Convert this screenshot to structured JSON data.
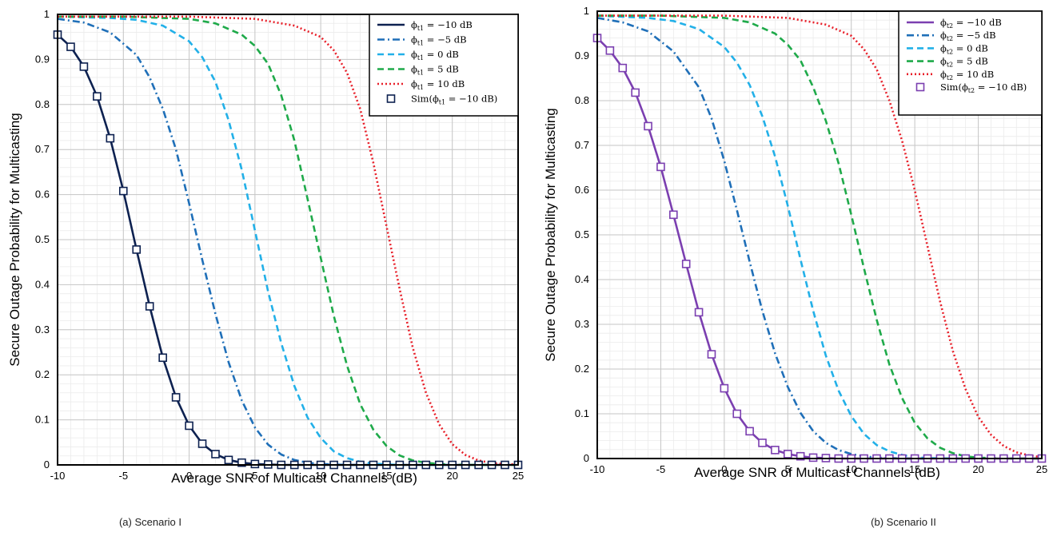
{
  "chart_data": [
    {
      "type": "line",
      "caption": "(a) Scenario I",
      "xlabel": "Average SNR of Multicast Channels (dB)",
      "ylabel": "Secure Outage Probability for Multicasting",
      "xlim": [
        -10,
        25
      ],
      "ylim": [
        0,
        1
      ],
      "x_ticks": [
        "-10",
        "-5",
        "0",
        "5",
        "10",
        "15",
        "20",
        "25"
      ],
      "y_ticks": [
        "0",
        "0.1",
        "0.2",
        "0.3",
        "0.4",
        "0.5",
        "0.6",
        "0.7",
        "0.8",
        "0.9",
        "1"
      ],
      "grid": true,
      "legend_position": "top-right",
      "series": [
        {
          "name": "ϕt1 = −10 dB",
          "sym": "ϕ",
          "sub": "t1",
          "rest": " = −10 dB",
          "color": "#0d2150",
          "style": "solid",
          "x": [
            -10,
            -9,
            -8,
            -7,
            -6,
            -5,
            -4,
            -3,
            -2,
            -1,
            0,
            1,
            2,
            3,
            4,
            5,
            6,
            7,
            8,
            9,
            10,
            12,
            14,
            16,
            18,
            20,
            22,
            24,
            25
          ],
          "y": [
            0.955,
            0.928,
            0.884,
            0.818,
            0.725,
            0.608,
            0.478,
            0.352,
            0.238,
            0.15,
            0.087,
            0.047,
            0.024,
            0.011,
            0.005,
            0.002,
            0.001,
            0,
            0,
            0,
            0,
            0,
            0,
            0,
            0,
            0,
            0,
            0,
            0
          ]
        },
        {
          "name": "ϕt1 = −5 dB",
          "sym": "ϕ",
          "sub": "t1",
          "rest": " = −5 dB",
          "color": "#1f6fb8",
          "style": "dashdot",
          "x": [
            -10,
            -8,
            -6,
            -4,
            -3,
            -2,
            -1,
            0,
            1,
            2,
            3,
            4,
            5,
            6,
            7,
            8,
            9,
            10,
            11,
            12,
            13,
            14,
            15
          ],
          "y": [
            0.99,
            0.982,
            0.96,
            0.91,
            0.86,
            0.79,
            0.7,
            0.58,
            0.455,
            0.335,
            0.228,
            0.143,
            0.083,
            0.045,
            0.023,
            0.011,
            0.005,
            0.002,
            0.001,
            0,
            0,
            0,
            0
          ]
        },
        {
          "name": "ϕt1 = 0 dB",
          "sym": "ϕ",
          "sub": "t1",
          "rest": " = 0 dB",
          "color": "#22b0e8",
          "style": "dash",
          "x": [
            -10,
            -6,
            -4,
            -2,
            0,
            1,
            2,
            3,
            4,
            5,
            6,
            7,
            8,
            9,
            10,
            11,
            12,
            13,
            14,
            15,
            16,
            18,
            20
          ],
          "y": [
            0.995,
            0.992,
            0.988,
            0.975,
            0.94,
            0.905,
            0.85,
            0.765,
            0.655,
            0.52,
            0.385,
            0.27,
            0.175,
            0.105,
            0.06,
            0.03,
            0.015,
            0.007,
            0.003,
            0.001,
            0,
            0,
            0
          ]
        },
        {
          "name": "ϕt1 = 5 dB",
          "sym": "ϕ",
          "sub": "t1",
          "rest": " = 5 dB",
          "color": "#1faa4a",
          "style": "dash",
          "x": [
            -10,
            -5,
            0,
            2,
            4,
            5,
            6,
            7,
            8,
            9,
            10,
            11,
            12,
            13,
            14,
            15,
            16,
            17,
            18,
            19,
            20,
            21,
            22,
            24,
            25
          ],
          "y": [
            0.995,
            0.995,
            0.99,
            0.98,
            0.955,
            0.93,
            0.89,
            0.82,
            0.72,
            0.59,
            0.46,
            0.33,
            0.22,
            0.135,
            0.078,
            0.042,
            0.021,
            0.01,
            0.005,
            0.002,
            0.001,
            0,
            0,
            0,
            0
          ]
        },
        {
          "name": "ϕt1 = 10 dB",
          "sym": "ϕ",
          "sub": "t1",
          "rest": " = 10 dB",
          "color": "#e8202a",
          "style": "dot",
          "x": [
            -10,
            -5,
            0,
            5,
            8,
            10,
            11,
            12,
            13,
            14,
            15,
            16,
            17,
            18,
            19,
            20,
            21,
            22,
            23,
            24,
            25
          ],
          "y": [
            0.995,
            0.995,
            0.995,
            0.99,
            0.975,
            0.95,
            0.92,
            0.87,
            0.79,
            0.67,
            0.53,
            0.39,
            0.26,
            0.16,
            0.09,
            0.046,
            0.022,
            0.01,
            0.004,
            0.002,
            0.001
          ]
        },
        {
          "name": "Sim(ϕt1 = −10 dB)",
          "sym": "Sim(ϕ",
          "sub": "t1",
          "rest": " = −10 dB)",
          "color": "#0d2150",
          "style": "markers",
          "x": [
            -10,
            -9,
            -8,
            -7,
            -6,
            -5,
            -4,
            -3,
            -2,
            -1,
            0,
            1,
            2,
            3,
            4,
            5,
            6,
            7,
            8,
            9,
            10,
            11,
            12,
            13,
            14,
            15,
            16,
            17,
            18,
            19,
            20,
            21,
            22,
            23,
            24,
            25
          ],
          "y": [
            0.955,
            0.928,
            0.884,
            0.818,
            0.725,
            0.608,
            0.478,
            0.352,
            0.238,
            0.15,
            0.087,
            0.047,
            0.024,
            0.011,
            0.005,
            0.002,
            0.001,
            0,
            0,
            0,
            0,
            0,
            0,
            0,
            0,
            0,
            0,
            0,
            0,
            0,
            0,
            0,
            0,
            0,
            0,
            0
          ]
        }
      ]
    },
    {
      "type": "line",
      "caption": "(b) Scenario II",
      "xlabel": "Average SNR of Multicast  Channels (dB)",
      "ylabel": "Secure Outage Probability  for Multicasting",
      "xlim": [
        -10,
        25
      ],
      "ylim": [
        0,
        1
      ],
      "x_ticks": [
        "-10",
        "-5",
        "0",
        "5",
        "10",
        "15",
        "20",
        "25"
      ],
      "y_ticks": [
        "0",
        "0.1",
        "0.2",
        "0.3",
        "0.4",
        "0.5",
        "0.6",
        "0.7",
        "0.8",
        "0.9",
        "1"
      ],
      "grid": true,
      "legend_position": "top-right",
      "series": [
        {
          "name": "ϕt2 = −10 dB",
          "sym": "ϕ",
          "sub": "t2",
          "rest": " = −10 dB",
          "color": "#7b3fb0",
          "style": "solid",
          "x": [
            -10,
            -9,
            -8,
            -7,
            -6,
            -5,
            -4,
            -3,
            -2,
            -1,
            0,
            1,
            2,
            3,
            4,
            5,
            6,
            7,
            8,
            9,
            10,
            12,
            14,
            16,
            18,
            20,
            22,
            24,
            25
          ],
          "y": [
            0.94,
            0.912,
            0.873,
            0.818,
            0.743,
            0.652,
            0.545,
            0.435,
            0.327,
            0.233,
            0.157,
            0.1,
            0.061,
            0.035,
            0.019,
            0.01,
            0.005,
            0.002,
            0.001,
            0,
            0,
            0,
            0,
            0,
            0,
            0,
            0,
            0,
            0
          ]
        },
        {
          "name": "ϕt2 = −5 dB",
          "sym": "ϕ",
          "sub": "t2",
          "rest": " = −5 dB",
          "color": "#1f6fb8",
          "style": "dashdot",
          "x": [
            -10,
            -8,
            -6,
            -4,
            -2,
            -1,
            0,
            1,
            2,
            3,
            4,
            5,
            6,
            7,
            8,
            9,
            10,
            11,
            12,
            13,
            14,
            15,
            16
          ],
          "y": [
            0.985,
            0.975,
            0.955,
            0.91,
            0.83,
            0.76,
            0.665,
            0.555,
            0.44,
            0.33,
            0.235,
            0.16,
            0.102,
            0.061,
            0.035,
            0.019,
            0.01,
            0.005,
            0.002,
            0.001,
            0,
            0,
            0
          ]
        },
        {
          "name": "ϕt2 = 0 dB",
          "sym": "ϕ",
          "sub": "t2",
          "rest": " = 0 dB",
          "color": "#22b0e8",
          "style": "dash",
          "x": [
            -10,
            -6,
            -4,
            -2,
            0,
            1,
            2,
            3,
            4,
            5,
            6,
            7,
            8,
            9,
            10,
            11,
            12,
            13,
            14,
            15,
            16,
            18,
            20
          ],
          "y": [
            0.99,
            0.985,
            0.978,
            0.96,
            0.92,
            0.885,
            0.835,
            0.765,
            0.675,
            0.565,
            0.445,
            0.33,
            0.23,
            0.152,
            0.095,
            0.055,
            0.03,
            0.016,
            0.008,
            0.003,
            0.001,
            0,
            0
          ]
        },
        {
          "name": "ϕt2 = 5 dB",
          "sym": "ϕ",
          "sub": "t2",
          "rest": " = 5 dB",
          "color": "#1faa4a",
          "style": "dash",
          "x": [
            -10,
            -5,
            0,
            2,
            4,
            5,
            6,
            7,
            8,
            9,
            10,
            11,
            12,
            13,
            14,
            15,
            16,
            17,
            18,
            19,
            20,
            21,
            22,
            24,
            25
          ],
          "y": [
            0.99,
            0.99,
            0.985,
            0.975,
            0.95,
            0.925,
            0.89,
            0.83,
            0.755,
            0.66,
            0.545,
            0.425,
            0.31,
            0.21,
            0.135,
            0.08,
            0.045,
            0.024,
            0.012,
            0.005,
            0.002,
            0.001,
            0,
            0,
            0
          ]
        },
        {
          "name": "ϕt2 = 10 dB",
          "sym": "ϕ",
          "sub": "t2",
          "rest": " = 10 dB",
          "color": "#e8202a",
          "style": "dot",
          "x": [
            -10,
            -5,
            0,
            5,
            8,
            10,
            11,
            12,
            13,
            14,
            15,
            16,
            17,
            18,
            19,
            20,
            21,
            22,
            23,
            24,
            25
          ],
          "y": [
            0.99,
            0.99,
            0.99,
            0.985,
            0.97,
            0.945,
            0.915,
            0.87,
            0.8,
            0.71,
            0.6,
            0.475,
            0.35,
            0.24,
            0.155,
            0.093,
            0.053,
            0.028,
            0.014,
            0.007,
            0.003
          ]
        },
        {
          "name": "Sim(ϕt2 = −10 dB)",
          "sym": "Sim(ϕ",
          "sub": "t2",
          "rest": " = −10 dB)",
          "color": "#7b3fb0",
          "style": "markers",
          "x": [
            -10,
            -9,
            -8,
            -7,
            -6,
            -5,
            -4,
            -3,
            -2,
            -1,
            0,
            1,
            2,
            3,
            4,
            5,
            6,
            7,
            8,
            9,
            10,
            11,
            12,
            13,
            14,
            15,
            16,
            17,
            18,
            19,
            20,
            21,
            22,
            23,
            24,
            25
          ],
          "y": [
            0.94,
            0.912,
            0.873,
            0.818,
            0.743,
            0.652,
            0.545,
            0.435,
            0.327,
            0.233,
            0.157,
            0.1,
            0.061,
            0.035,
            0.019,
            0.01,
            0.005,
            0.002,
            0.001,
            0,
            0,
            0,
            0,
            0,
            0,
            0,
            0,
            0,
            0,
            0,
            0,
            0,
            0,
            0,
            0,
            0
          ]
        }
      ]
    }
  ]
}
